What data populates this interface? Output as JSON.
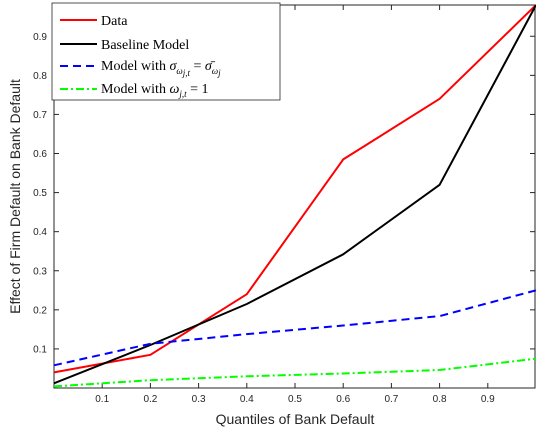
{
  "chart_data": {
    "type": "line",
    "xlabel": "Quantiles of Bank Default",
    "ylabel": "Effect of Firm Default on Bank Default",
    "xlim": [
      0.0,
      1.0
    ],
    "ylim": [
      0.0,
      0.98
    ],
    "xticks": [
      "0.1",
      "0.2",
      "0.3",
      "0.4",
      "0.5",
      "0.6",
      "0.7",
      "0.8",
      "0.9"
    ],
    "yticks": [
      "0.1",
      "0.2",
      "0.3",
      "0.4",
      "0.5",
      "0.6",
      "0.7",
      "0.8",
      "0.9"
    ],
    "grid": false,
    "legend_position": "top-left",
    "x": [
      0.0,
      0.2,
      0.4,
      0.6,
      0.8,
      1.0
    ],
    "series": [
      {
        "name": "Data",
        "color": "#ff0000",
        "style": "solid",
        "values": [
          0.04,
          0.085,
          0.24,
          0.585,
          0.74,
          0.98
        ]
      },
      {
        "name": "Baseline Model",
        "color": "#000000",
        "style": "solid",
        "values": [
          0.012,
          0.11,
          0.215,
          0.342,
          0.52,
          0.98
        ]
      },
      {
        "name": "Model with σ_{ω_{j,t}} = σ̄_{ω_j}",
        "color": "#0000ff",
        "style": "dashed",
        "values": [
          0.058,
          0.113,
          0.138,
          0.16,
          0.184,
          0.25
        ]
      },
      {
        "name": "Model with ω_{j,t} = 1",
        "color": "#00ff00",
        "style": "dashdot",
        "values": [
          0.004,
          0.02,
          0.03,
          0.037,
          0.046,
          0.075
        ]
      }
    ]
  },
  "legend": {
    "items": [
      {
        "name": "Data"
      },
      {
        "name": "Baseline Model"
      },
      {
        "prefix": "Model with ",
        "sym1": "σ",
        "sub1": "ω",
        "subsub1": "j,t",
        "eq": " = ",
        "sym2": "σ̄",
        "sub2": "ω",
        "subsub2": "j"
      },
      {
        "prefix": "Model with ",
        "sym1": "ω",
        "sub1": "j,t",
        "eq": " = 1"
      }
    ]
  }
}
